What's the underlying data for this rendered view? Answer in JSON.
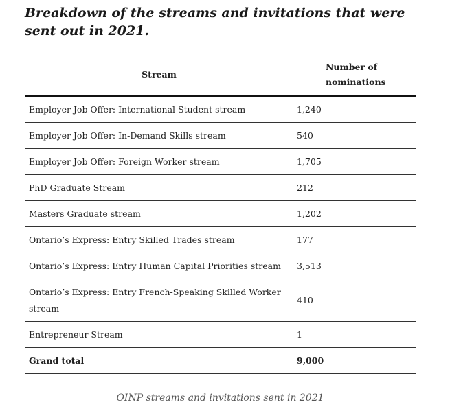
{
  "heading": "Breakdown of the streams and invitations that were sent out in 2021.",
  "table": {
    "headers": {
      "stream": "Stream",
      "number": "Number of nominations"
    },
    "rows": [
      {
        "stream": "Employer Job Offer: International Student stream",
        "number": "1,240"
      },
      {
        "stream": "Employer Job Offer: In-Demand Skills stream",
        "number": "540"
      },
      {
        "stream": "Employer Job Offer: Foreign Worker stream",
        "number": "1,705"
      },
      {
        "stream": "PhD Graduate Stream",
        "number": "212"
      },
      {
        "stream": "Masters Graduate stream",
        "number": "1,202"
      },
      {
        "stream": "Ontario’s Express: Entry Skilled Trades stream",
        "number": "177"
      },
      {
        "stream": "Ontario’s Express: Entry Human Capital Priorities stream",
        "number": "3,513"
      },
      {
        "stream": "Ontario’s Express: Entry French-Speaking Skilled Worker stream",
        "number": "410"
      },
      {
        "stream": "Entrepreneur Stream",
        "number": "1"
      }
    ],
    "total": {
      "stream": "Grand total",
      "number": "9,000"
    }
  },
  "caption": "OINP streams and invitations sent in 2021"
}
